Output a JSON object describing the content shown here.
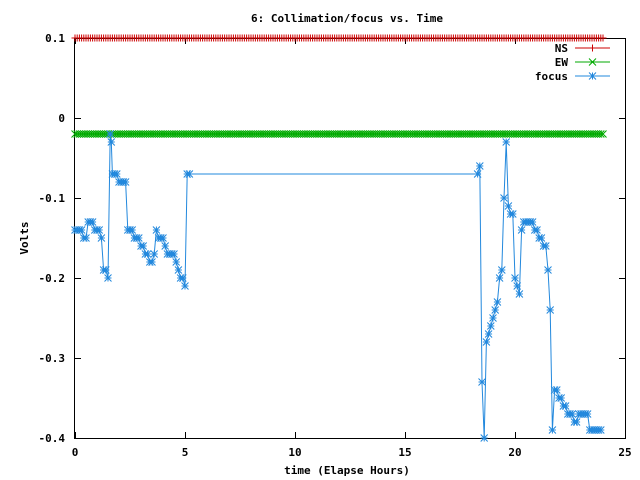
{
  "chart_data": {
    "type": "line",
    "title": "6: Collimation/focus vs. Time",
    "xlabel": "time (Elapse Hours)",
    "ylabel": "Volts",
    "xlim": [
      0,
      25
    ],
    "ylim": [
      -0.4,
      0.1
    ],
    "xticks": [
      0,
      5,
      10,
      15,
      20,
      25
    ],
    "xtick_labels": [
      "0",
      "5",
      "10",
      "15",
      "20",
      "25"
    ],
    "yticks": [
      -0.4,
      -0.3,
      -0.2,
      -0.1,
      0,
      0.1
    ],
    "ytick_labels": [
      "-0.4",
      "-0.3",
      "-0.2",
      "-0.1",
      "0",
      "0.1"
    ],
    "grid": false,
    "legend_position": "top-right",
    "series": [
      {
        "name": "NS",
        "color": "#cc0000",
        "marker": "plus",
        "x": [
          0,
          24
        ],
        "y": [
          0.1,
          0.1
        ],
        "step": 0.1
      },
      {
        "name": "EW",
        "color": "#00aa00",
        "marker": "cross",
        "x": [
          0,
          24
        ],
        "y": [
          -0.02,
          -0.02
        ],
        "step": 0.1
      },
      {
        "name": "focus",
        "color": "#2288dd",
        "marker": "star",
        "x": [
          0,
          0.1,
          0.2,
          0.3,
          0.4,
          0.5,
          0.6,
          0.7,
          0.8,
          0.9,
          1.0,
          1.1,
          1.2,
          1.3,
          1.4,
          1.5,
          1.6,
          1.65,
          1.7,
          1.8,
          1.9,
          2.0,
          2.1,
          2.2,
          2.3,
          2.4,
          2.5,
          2.6,
          2.7,
          2.8,
          2.9,
          3.0,
          3.1,
          3.2,
          3.3,
          3.4,
          3.5,
          3.6,
          3.7,
          3.8,
          3.9,
          4.0,
          4.1,
          4.2,
          4.3,
          4.4,
          4.5,
          4.6,
          4.7,
          4.8,
          4.9,
          5.0,
          5.1,
          5.2,
          18.3,
          18.4,
          18.5,
          18.6,
          18.7,
          18.8,
          18.9,
          19.0,
          19.1,
          19.2,
          19.3,
          19.4,
          19.5,
          19.6,
          19.7,
          19.8,
          19.9,
          20.0,
          20.1,
          20.2,
          20.3,
          20.4,
          20.5,
          20.6,
          20.7,
          20.8,
          20.9,
          21.0,
          21.1,
          21.2,
          21.3,
          21.4,
          21.5,
          21.6,
          21.7,
          21.8,
          21.9,
          22.0,
          22.1,
          22.2,
          22.3,
          22.4,
          22.5,
          22.6,
          22.7,
          22.8,
          22.9,
          23.0,
          23.1,
          23.2,
          23.3,
          23.4,
          23.5,
          23.6,
          23.7,
          23.8,
          23.9
        ],
        "y": [
          -0.14,
          -0.14,
          -0.14,
          -0.14,
          -0.15,
          -0.15,
          -0.13,
          -0.13,
          -0.13,
          -0.14,
          -0.14,
          -0.14,
          -0.15,
          -0.19,
          -0.19,
          -0.2,
          -0.02,
          -0.03,
          -0.07,
          -0.07,
          -0.07,
          -0.08,
          -0.08,
          -0.08,
          -0.08,
          -0.14,
          -0.14,
          -0.14,
          -0.15,
          -0.15,
          -0.15,
          -0.16,
          -0.16,
          -0.17,
          -0.17,
          -0.18,
          -0.18,
          -0.17,
          -0.14,
          -0.15,
          -0.15,
          -0.15,
          -0.16,
          -0.17,
          -0.17,
          -0.17,
          -0.17,
          -0.18,
          -0.19,
          -0.2,
          -0.2,
          -0.21,
          -0.07,
          -0.07,
          -0.07,
          -0.06,
          -0.33,
          -0.4,
          -0.28,
          -0.27,
          -0.26,
          -0.25,
          -0.24,
          -0.23,
          -0.2,
          -0.19,
          -0.1,
          -0.03,
          -0.11,
          -0.12,
          -0.12,
          -0.2,
          -0.21,
          -0.22,
          -0.14,
          -0.13,
          -0.13,
          -0.13,
          -0.13,
          -0.13,
          -0.14,
          -0.14,
          -0.15,
          -0.15,
          -0.16,
          -0.16,
          -0.19,
          -0.24,
          -0.39,
          -0.34,
          -0.34,
          -0.35,
          -0.35,
          -0.36,
          -0.36,
          -0.37,
          -0.37,
          -0.37,
          -0.38,
          -0.38,
          -0.37,
          -0.37,
          -0.37,
          -0.37,
          -0.37,
          -0.39,
          -0.39,
          -0.39,
          -0.39,
          -0.39,
          -0.39
        ]
      }
    ]
  }
}
